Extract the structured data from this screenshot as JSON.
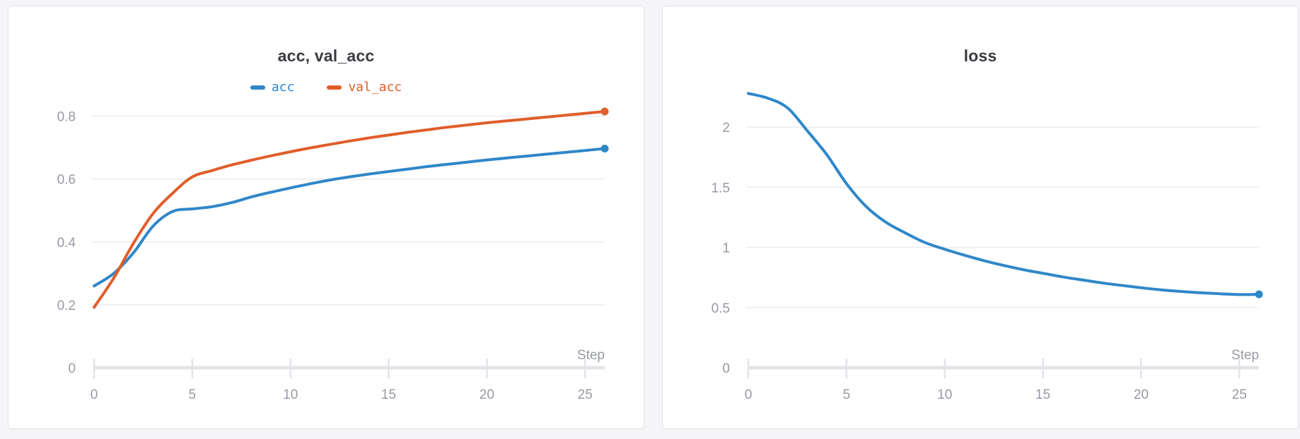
{
  "styles": {
    "page_bg": "#f5f5f7",
    "card_bg": "#ffffff",
    "card_border": "#dee0e3",
    "title_color": "#3a3c42",
    "tick_label_color": "#979aa4",
    "grid_color": "#ededf0",
    "axis_color": "#e3e4e8",
    "accent_blue": "#2f87c9",
    "accent_orange": "#e05e2b"
  },
  "chart_data": [
    {
      "type": "line",
      "title": "acc, val_acc",
      "xlabel": "Step",
      "legend_position": "top",
      "grid": true,
      "x": [
        0,
        1,
        2,
        3,
        4,
        5,
        6,
        7,
        8,
        9,
        10,
        11,
        12,
        13,
        14,
        15,
        16,
        17,
        18,
        19,
        20,
        21,
        22,
        23,
        24,
        25,
        26
      ],
      "xlim": [
        0,
        26
      ],
      "ylim": [
        0,
        0.88
      ],
      "xticks": [
        0,
        5,
        10,
        15,
        20,
        25
      ],
      "xtick_labels": [
        "0",
        "5",
        "10",
        "15",
        "20",
        "25"
      ],
      "yticks": [
        0,
        0.2,
        0.4,
        0.6,
        0.8
      ],
      "ytick_labels": [
        "0",
        "0.2",
        "0.4",
        "0.6",
        "0.8"
      ],
      "series": [
        {
          "name": "acc",
          "color": "#2f87c9",
          "end_dot": true,
          "values": [
            0.26,
            0.3,
            0.365,
            0.45,
            0.497,
            0.505,
            0.512,
            0.525,
            0.543,
            0.558,
            0.572,
            0.585,
            0.597,
            0.607,
            0.616,
            0.624,
            0.632,
            0.64,
            0.647,
            0.654,
            0.661,
            0.667,
            0.673,
            0.679,
            0.685,
            0.691,
            0.697
          ]
        },
        {
          "name": "val_acc",
          "color": "#e05e2b",
          "end_dot": true,
          "values": [
            0.192,
            0.285,
            0.395,
            0.49,
            0.555,
            0.607,
            0.627,
            0.645,
            0.66,
            0.674,
            0.687,
            0.699,
            0.71,
            0.721,
            0.731,
            0.74,
            0.749,
            0.757,
            0.765,
            0.772,
            0.779,
            0.785,
            0.791,
            0.797,
            0.803,
            0.809,
            0.815
          ]
        }
      ]
    },
    {
      "type": "line",
      "title": "loss",
      "xlabel": "Step",
      "legend_position": "none",
      "grid": true,
      "x": [
        0,
        1,
        2,
        3,
        4,
        5,
        6,
        7,
        8,
        9,
        10,
        11,
        12,
        13,
        14,
        15,
        16,
        17,
        18,
        19,
        20,
        21,
        22,
        23,
        24,
        25,
        26
      ],
      "xlim": [
        0,
        26
      ],
      "ylim": [
        0,
        2.3
      ],
      "xticks": [
        0,
        5,
        10,
        15,
        20,
        25
      ],
      "xtick_labels": [
        "0",
        "5",
        "10",
        "15",
        "20",
        "25"
      ],
      "yticks": [
        0,
        0.5,
        1,
        1.5,
        2
      ],
      "ytick_labels": [
        "0",
        "0.5",
        "1",
        "1.5",
        "2"
      ],
      "series": [
        {
          "name": "loss",
          "color": "#2f87c9",
          "end_dot": true,
          "values": [
            2.28,
            2.24,
            2.16,
            1.97,
            1.77,
            1.53,
            1.34,
            1.21,
            1.12,
            1.04,
            0.985,
            0.935,
            0.89,
            0.85,
            0.815,
            0.785,
            0.755,
            0.73,
            0.705,
            0.685,
            0.665,
            0.648,
            0.634,
            0.623,
            0.615,
            0.608,
            0.61
          ]
        }
      ]
    }
  ]
}
